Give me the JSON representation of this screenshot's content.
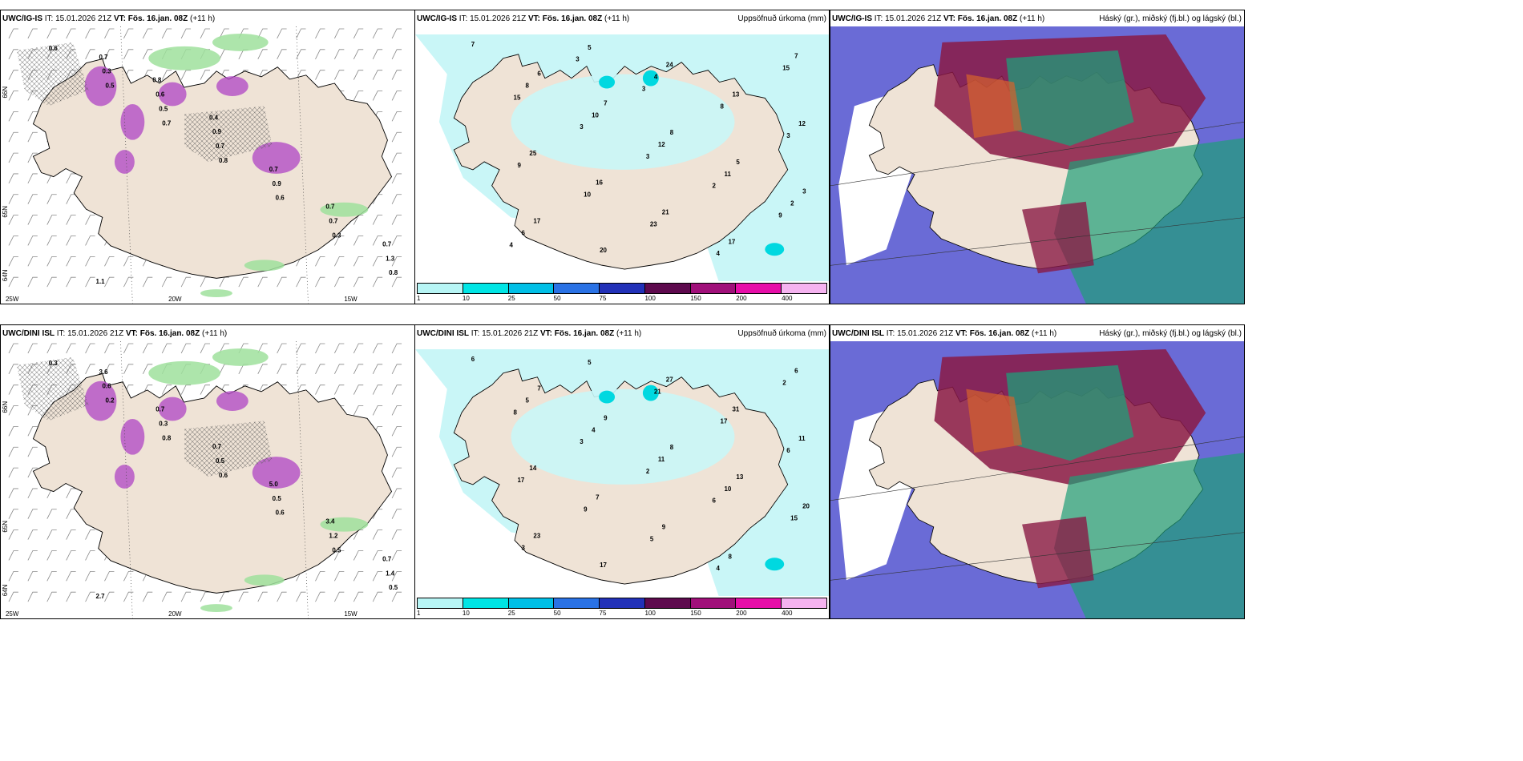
{
  "panels": [
    {
      "id": "ig-wind",
      "model": "UWC/IG-IS",
      "it": "IT: 15.01.2026 21Z",
      "vt": "VT: Fös. 16.jan. 08Z",
      "lead": "(+11 h)",
      "right_title": "",
      "axis_labels": [
        "66N",
        "65N",
        "64N",
        "25W",
        "20W",
        "15W"
      ],
      "precip_labels": [
        "0.6",
        "0.5",
        "0.7",
        "0.8",
        "0.6",
        "0.3",
        "0.8",
        "0.3",
        "0.5",
        "0.7",
        "0.9",
        "0.7",
        "1.3",
        "0.7",
        "0.6",
        "0.9",
        "0.7",
        "0.7",
        "0.7",
        "1.1",
        "0.8",
        "0.4"
      ]
    },
    {
      "id": "ig-precip",
      "model": "UWC/IG-IS",
      "it": "IT: 15.01.2026 21Z",
      "vt": "VT: Fös. 16.jan. 08Z",
      "lead": "(+11 h)",
      "right_title": "Uppsöfnuð úrkoma (mm)",
      "axis_labels": [],
      "precip_labels": [
        "7",
        "6",
        "7",
        "8",
        "5",
        "3",
        "17",
        "20",
        "24",
        "13",
        "12",
        "25",
        "16",
        "21",
        "17",
        "7",
        "8",
        "10",
        "12",
        "11",
        "2",
        "6",
        "5",
        "4",
        "8",
        "3",
        "9",
        "10",
        "23",
        "4",
        "15",
        "15",
        "3",
        "3",
        "2",
        "9",
        "4",
        "3",
        "3"
      ]
    },
    {
      "id": "ig-cloud",
      "model": "UWC/IG-IS",
      "it": "IT: 15.01.2026 21Z",
      "vt": "VT: Fös. 16.jan. 08Z",
      "lead": "(+11 h)",
      "right_title": "Háský (gr.), miðský (fj.bl.) og lágský (bl.)",
      "axis_labels": [],
      "precip_labels": []
    },
    {
      "id": "dini-wind",
      "model": "UWC/DINI ISL",
      "it": "IT: 15.01.2026 21Z",
      "vt": "VT: Fös. 16.jan. 08Z",
      "lead": "(+11 h)",
      "right_title": "",
      "axis_labels": [
        "66N",
        "65N",
        "64N",
        "25W",
        "20W",
        "15W"
      ],
      "precip_labels": [
        "0.3",
        "0.2",
        "0.8",
        "0.6",
        "0.6",
        "0.5",
        "0.5",
        "0.6",
        "0.3",
        "0.5",
        "0.5",
        "1.2",
        "1.4",
        "3.6",
        "0.7",
        "0.7",
        "5.0",
        "3.4",
        "0.7",
        "2.7"
      ]
    },
    {
      "id": "dini-precip",
      "model": "UWC/DINI ISL",
      "it": "IT: 15.01.2026 21Z",
      "vt": "VT: Fös. 16.jan. 08Z",
      "lead": "(+11 h)",
      "right_title": "Uppsöfnuð úrkoma (mm)",
      "axis_labels": [],
      "precip_labels": [
        "6",
        "7",
        "9",
        "8",
        "13",
        "20",
        "23",
        "17",
        "27",
        "31",
        "11",
        "14",
        "7",
        "9",
        "8",
        "6",
        "5",
        "4",
        "11",
        "10",
        "15",
        "3",
        "5",
        "21",
        "17",
        "6",
        "17",
        "9",
        "5",
        "4",
        "2",
        "8",
        "3",
        "2",
        "6"
      ]
    },
    {
      "id": "dini-cloud",
      "model": "UWC/DINI ISL",
      "it": "IT: 15.01.2026 21Z",
      "vt": "VT: Fös. 16.jan. 08Z",
      "lead": "(+11 h)",
      "right_title": "Háský (gr.), miðský (fj.bl.) og lágský (bl.)",
      "axis_labels": [],
      "precip_labels": []
    }
  ],
  "colorbar": {
    "labels": [
      "1",
      "10",
      "25",
      "50",
      "75",
      "100",
      "150",
      "200",
      "400"
    ],
    "colors": [
      "#b7f5f5",
      "#00e5e5",
      "#00bfe6",
      "#2a72e5",
      "#2231b8",
      "#5e0a4e",
      "#a0107a",
      "#e60ea8",
      "#f5b3f0"
    ]
  },
  "colors": {
    "land": "#efe3d6",
    "sea_light": "#c9f6f7",
    "precip_green": "#9fe09c",
    "precip_purple": "#b34ec6",
    "cloud_high": "#6a6bd6",
    "cloud_mid": "#1f9e78",
    "cloud_low": "#8a1a45"
  }
}
